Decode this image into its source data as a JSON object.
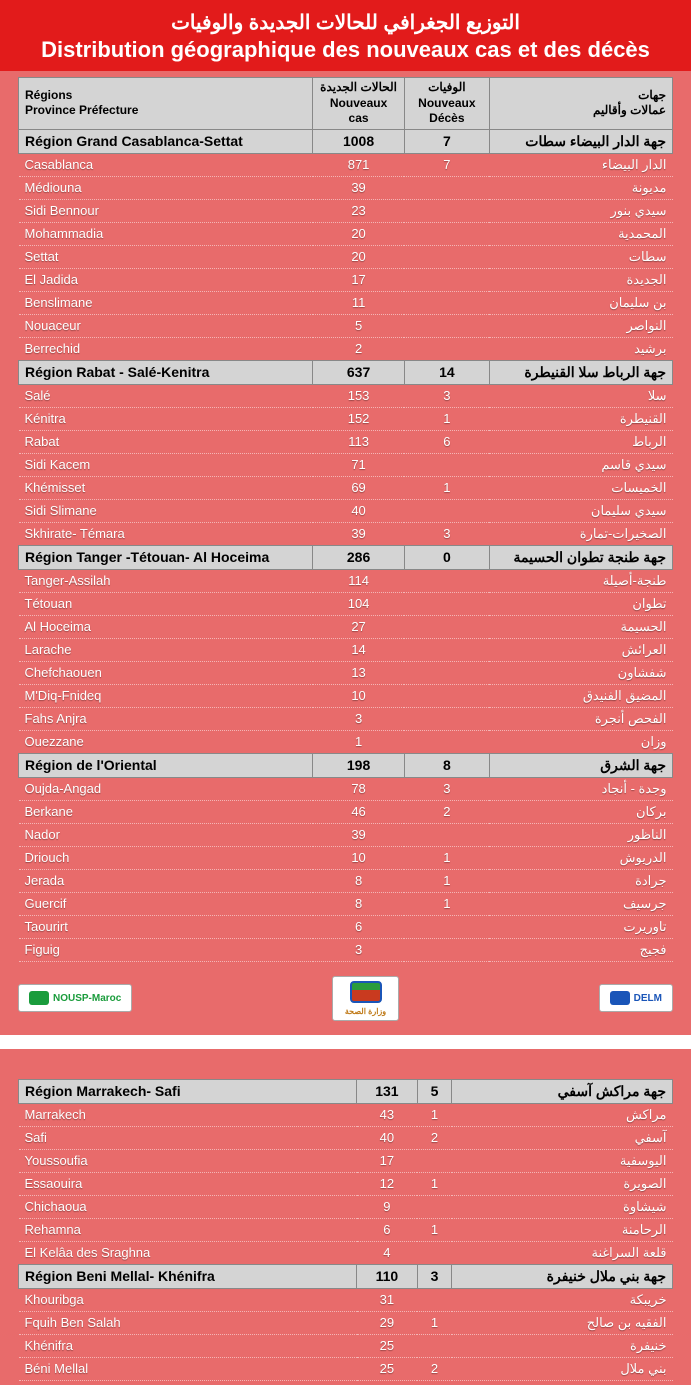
{
  "colors": {
    "page_bg": "#e86b6b",
    "header_bg": "#e21b1b",
    "header_text": "#ffffff",
    "region_row_bg": "#d4d4d4",
    "region_border": "#888888",
    "sub_text": "#ffffff",
    "divider_bg": "#ffffff"
  },
  "title": {
    "ar": "التوزيع الجغرافي للحالات الجديدة والوفيات",
    "fr": "Distribution géographique des nouveaux cas et des décès"
  },
  "columns": {
    "fr_regions": "Régions",
    "fr_province": "Province Préfecture",
    "ar_new_cases": "الحالات الجديدة",
    "fr_new_cases": "Nouveaux cas",
    "ar_deaths": "الوفيات",
    "fr_deaths": "Nouveaux Décès",
    "ar_regions": "جهات",
    "ar_province": "عمالات وأقاليم"
  },
  "logos": {
    "nousp": "NOUSP-Maroc",
    "moh": "وزارة الصحة",
    "delm": "DELM"
  },
  "regions_part1": [
    {
      "fr": "Région Grand Casablanca-Settat",
      "cases": "1008",
      "deaths": "7",
      "ar": "جهة الدار البيضاء سطات",
      "subs": [
        {
          "fr": "Casablanca",
          "cases": "871",
          "deaths": "7",
          "ar": "الدار البيضاء"
        },
        {
          "fr": "Médiouna",
          "cases": "39",
          "deaths": "",
          "ar": "مديونة"
        },
        {
          "fr": "Sidi Bennour",
          "cases": "23",
          "deaths": "",
          "ar": "سيدي بنور"
        },
        {
          "fr": "Mohammadia",
          "cases": "20",
          "deaths": "",
          "ar": "المحمدية"
        },
        {
          "fr": "Settat",
          "cases": "20",
          "deaths": "",
          "ar": "سطات"
        },
        {
          "fr": "El Jadida",
          "cases": "17",
          "deaths": "",
          "ar": "الجديدة"
        },
        {
          "fr": "Benslimane",
          "cases": "11",
          "deaths": "",
          "ar": "بن سليمان"
        },
        {
          "fr": "Nouaceur",
          "cases": "5",
          "deaths": "",
          "ar": "النواصر"
        },
        {
          "fr": "Berrechid",
          "cases": "2",
          "deaths": "",
          "ar": "برشيد"
        }
      ]
    },
    {
      "fr": "Région Rabat - Salé-Kenitra",
      "cases": "637",
      "deaths": "14",
      "ar": "جهة الرباط سلا القنيطرة",
      "subs": [
        {
          "fr": "Salé",
          "cases": "153",
          "deaths": "3",
          "ar": "سلا"
        },
        {
          "fr": "Kénitra",
          "cases": "152",
          "deaths": "1",
          "ar": "القنيطرة"
        },
        {
          "fr": "Rabat",
          "cases": "113",
          "deaths": "6",
          "ar": "الرباط"
        },
        {
          "fr": "Sidi Kacem",
          "cases": "71",
          "deaths": "",
          "ar": "سيدي قاسم"
        },
        {
          "fr": "Khémisset",
          "cases": "69",
          "deaths": "1",
          "ar": "الخميسات"
        },
        {
          "fr": "Sidi Slimane",
          "cases": "40",
          "deaths": "",
          "ar": "سيدي سليمان"
        },
        {
          "fr": "Skhirate- Témara",
          "cases": "39",
          "deaths": "3",
          "ar": "الصخيرات-تمارة"
        }
      ]
    },
    {
      "fr": "Région Tanger -Tétouan- Al Hoceima",
      "cases": "286",
      "deaths": "0",
      "ar": "جهة طنجة تطوان الحسيمة",
      "subs": [
        {
          "fr": "Tanger-Assilah",
          "cases": "114",
          "deaths": "",
          "ar": "طنجة-أصيلة"
        },
        {
          "fr": "Tétouan",
          "cases": "104",
          "deaths": "",
          "ar": "تطوان"
        },
        {
          "fr": "Al Hoceima",
          "cases": "27",
          "deaths": "",
          "ar": "الحسيمة"
        },
        {
          "fr": "Larache",
          "cases": "14",
          "deaths": "",
          "ar": "العرائش"
        },
        {
          "fr": "Chefchaouen",
          "cases": "13",
          "deaths": "",
          "ar": "شفشاون"
        },
        {
          "fr": "M'Diq-Fnideq",
          "cases": "10",
          "deaths": "",
          "ar": "المضيق الفنيدق"
        },
        {
          "fr": "Fahs Anjra",
          "cases": "3",
          "deaths": "",
          "ar": "الفحص أنجرة"
        },
        {
          "fr": "Ouezzane",
          "cases": "1",
          "deaths": "",
          "ar": "وزان"
        }
      ]
    },
    {
      "fr": "Région de l'Oriental",
      "cases": "198",
      "deaths": "8",
      "ar": "جهة الشرق",
      "subs": [
        {
          "fr": "Oujda-Angad",
          "cases": "78",
          "deaths": "3",
          "ar": "وجدة - أنجاد"
        },
        {
          "fr": "Berkane",
          "cases": "46",
          "deaths": "2",
          "ar": "بركان"
        },
        {
          "fr": "Nador",
          "cases": "39",
          "deaths": "",
          "ar": "الناظور"
        },
        {
          "fr": "Driouch",
          "cases": "10",
          "deaths": "1",
          "ar": "الدريوش"
        },
        {
          "fr": "Jerada",
          "cases": "8",
          "deaths": "1",
          "ar": "جرادة"
        },
        {
          "fr": "Guercif",
          "cases": "8",
          "deaths": "1",
          "ar": "جرسيف"
        },
        {
          "fr": "Taourirt",
          "cases": "6",
          "deaths": "",
          "ar": "تاوريرت"
        },
        {
          "fr": "Figuig",
          "cases": "3",
          "deaths": "",
          "ar": "فجيج"
        }
      ]
    }
  ],
  "regions_part2": [
    {
      "fr": "Région Marrakech- Safi",
      "cases": "131",
      "deaths": "5",
      "ar": "جهة مراكش آسفي",
      "subs": [
        {
          "fr": "Marrakech",
          "cases": "43",
          "deaths": "1",
          "ar": "مراكش"
        },
        {
          "fr": "Safi",
          "cases": "40",
          "deaths": "2",
          "ar": "آسفي"
        },
        {
          "fr": "Youssoufia",
          "cases": "17",
          "deaths": "",
          "ar": "اليوسفية"
        },
        {
          "fr": "Essaouira",
          "cases": "12",
          "deaths": "1",
          "ar": "الصويرة"
        },
        {
          "fr": "Chichaoua",
          "cases": "9",
          "deaths": "",
          "ar": "شيشاوة"
        },
        {
          "fr": "Rehamna",
          "cases": "6",
          "deaths": "1",
          "ar": "الرحامنة"
        },
        {
          "fr": "El Kelâa des  Sraghna",
          "cases": "4",
          "deaths": "",
          "ar": "قلعة السراغنة"
        }
      ]
    },
    {
      "fr": "Région Beni Mellal- Khénifra",
      "cases": "110",
      "deaths": "3",
      "ar": "جهة بني ملال خنيفرة",
      "subs": [
        {
          "fr": "Khouribga",
          "cases": "31",
          "deaths": "",
          "ar": "خريبكة"
        },
        {
          "fr": "Fquih Ben Salah",
          "cases": "29",
          "deaths": "1",
          "ar": "الفقيه بن صالح"
        },
        {
          "fr": "Khénifra",
          "cases": "25",
          "deaths": "",
          "ar": "خنيفرة"
        },
        {
          "fr": "Béni Mellal",
          "cases": "25",
          "deaths": "2",
          "ar": "بني ملال"
        }
      ]
    }
  ]
}
